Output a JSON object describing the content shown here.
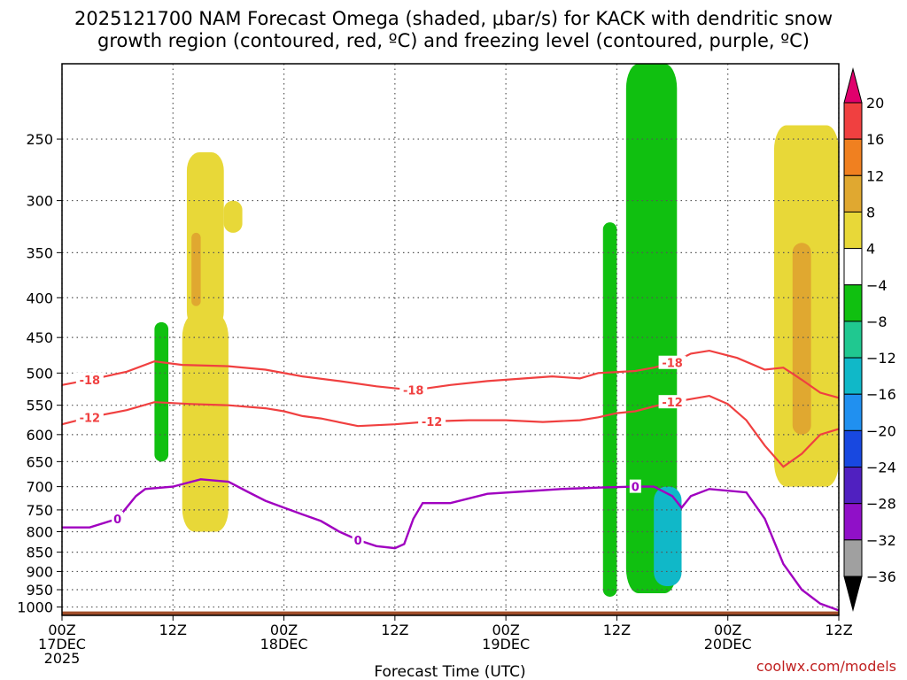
{
  "chart_data": {
    "type": "time-height-cross-section",
    "title": [
      "2025121700 NAM Forecast Omega (shaded, μbar/s) for KACK with dendritic snow",
      "growth region (contoured, red, ºC) and freezing level (contoured, purple, ºC)"
    ],
    "xlabel": "Forecast Time (UTC)",
    "x_tick_labels": [
      [
        "00Z",
        "17DEC",
        "2025"
      ],
      [
        "12Z"
      ],
      [
        "00Z",
        "18DEC"
      ],
      [
        "12Z"
      ],
      [
        "00Z",
        "19DEC"
      ],
      [
        "12Z"
      ],
      [
        "00Z",
        "20DEC"
      ],
      [
        "12Z"
      ]
    ],
    "x_hours": [
      0,
      12,
      24,
      36,
      48,
      60,
      72,
      84
    ],
    "xlim_hours": [
      0,
      84
    ],
    "y_levels_hpa": [
      250,
      300,
      350,
      400,
      450,
      500,
      550,
      600,
      650,
      700,
      750,
      800,
      850,
      900,
      950,
      1000
    ],
    "ylim_hpa": [
      1025,
      200
    ],
    "colorbar": {
      "labels": [
        "20",
        "16",
        "12",
        "8",
        "4",
        "−4",
        "−8",
        "−12",
        "−16",
        "−20",
        "−24",
        "−28",
        "−32",
        "−36"
      ],
      "colors": [
        "#e0006c",
        "#f04040",
        "#f08020",
        "#e0a830",
        "#e8d838",
        "#ffffff",
        "#10c010",
        "#20c890",
        "#10b8c8",
        "#2090f0",
        "#1848e0",
        "#5020c0",
        "#9010c8",
        "#a0a0a0",
        "#000000"
      ]
    },
    "contours": {
      "dgz_minus18": {
        "label": "-18",
        "color": "#f04040",
        "points": [
          [
            0,
            518
          ],
          [
            3,
            510
          ],
          [
            7,
            498
          ],
          [
            10,
            483
          ],
          [
            13,
            488
          ],
          [
            18,
            490
          ],
          [
            22,
            495
          ],
          [
            26,
            505
          ],
          [
            30,
            512
          ],
          [
            34,
            520
          ],
          [
            38,
            526
          ],
          [
            42,
            518
          ],
          [
            46,
            512
          ],
          [
            50,
            508
          ],
          [
            53,
            505
          ],
          [
            56,
            508
          ],
          [
            58,
            500
          ],
          [
            62,
            497
          ],
          [
            64,
            492
          ],
          [
            66,
            485
          ],
          [
            68,
            472
          ],
          [
            70,
            468
          ],
          [
            73,
            478
          ],
          [
            76,
            495
          ],
          [
            78,
            492
          ],
          [
            80,
            510
          ],
          [
            82,
            530
          ],
          [
            84,
            538
          ]
        ]
      },
      "dgz_minus12": {
        "label": "-12",
        "color": "#f04040",
        "points": [
          [
            0,
            582
          ],
          [
            3,
            570
          ],
          [
            7,
            558
          ],
          [
            10,
            545
          ],
          [
            14,
            548
          ],
          [
            18,
            550
          ],
          [
            22,
            555
          ],
          [
            24,
            560
          ],
          [
            26,
            568
          ],
          [
            28,
            572
          ],
          [
            32,
            585
          ],
          [
            36,
            582
          ],
          [
            40,
            577
          ],
          [
            44,
            575
          ],
          [
            48,
            575
          ],
          [
            52,
            578
          ],
          [
            56,
            575
          ],
          [
            58,
            570
          ],
          [
            60,
            563
          ],
          [
            62,
            560
          ],
          [
            64,
            552
          ],
          [
            66,
            545
          ],
          [
            68,
            540
          ],
          [
            70,
            535
          ],
          [
            72,
            548
          ],
          [
            74,
            575
          ],
          [
            76,
            620
          ],
          [
            78,
            660
          ],
          [
            80,
            635
          ],
          [
            82,
            600
          ],
          [
            84,
            590
          ]
        ]
      },
      "freezing_level": {
        "label": "0",
        "color": "#a000c0",
        "points": [
          [
            0,
            790
          ],
          [
            3,
            790
          ],
          [
            6,
            770
          ],
          [
            8,
            720
          ],
          [
            9,
            705
          ],
          [
            12,
            700
          ],
          [
            15,
            685
          ],
          [
            18,
            690
          ],
          [
            20,
            710
          ],
          [
            22,
            730
          ],
          [
            24,
            745
          ],
          [
            26,
            760
          ],
          [
            28,
            775
          ],
          [
            30,
            800
          ],
          [
            32,
            820
          ],
          [
            34,
            835
          ],
          [
            36,
            840
          ],
          [
            37,
            830
          ],
          [
            38,
            770
          ],
          [
            39,
            735
          ],
          [
            42,
            735
          ],
          [
            46,
            715
          ],
          [
            50,
            710
          ],
          [
            54,
            705
          ],
          [
            58,
            702
          ],
          [
            62,
            700
          ],
          [
            64,
            700
          ],
          [
            66,
            720
          ],
          [
            67,
            745
          ],
          [
            68,
            720
          ],
          [
            70,
            705
          ],
          [
            74,
            712
          ],
          [
            76,
            770
          ],
          [
            78,
            880
          ],
          [
            80,
            950
          ],
          [
            82,
            990
          ],
          [
            84,
            1010
          ]
        ]
      }
    },
    "omega_regions": [
      {
        "value_bin": "4-8",
        "hours": [
          13.5,
          17.5
        ],
        "p_top": 260,
        "p_bot": 440
      },
      {
        "value_bin": "4-8",
        "hours": [
          17.5,
          19.5
        ],
        "p_top": 300,
        "p_bot": 330
      },
      {
        "value_bin": "4-8",
        "hours": [
          13,
          18
        ],
        "p_top": 420,
        "p_bot": 800
      },
      {
        "value_bin": "8-12",
        "hours": [
          14,
          15
        ],
        "p_top": 330,
        "p_bot": 410
      },
      {
        "value_bin": "-4 to -8",
        "hours": [
          10,
          11.5
        ],
        "p_top": 430,
        "p_bot": 650
      },
      {
        "value_bin": "-4 to -8",
        "hours": [
          58.5,
          60
        ],
        "p_top": 320,
        "p_bot": 970
      },
      {
        "value_bin": "-4 to -8",
        "hours": [
          61,
          66.5
        ],
        "p_top": 200,
        "p_bot": 960
      },
      {
        "value_bin": "-12 to -16",
        "hours": [
          64,
          67
        ],
        "p_top": 700,
        "p_bot": 940
      },
      {
        "value_bin": "4-8",
        "hours": [
          77,
          84
        ],
        "p_top": 240,
        "p_bot": 700
      },
      {
        "value_bin": "8-12",
        "hours": [
          79,
          81
        ],
        "p_top": 340,
        "p_bot": 600
      }
    ],
    "terrain_color": "#a04e2a"
  },
  "credit": "coolwx.com/models"
}
